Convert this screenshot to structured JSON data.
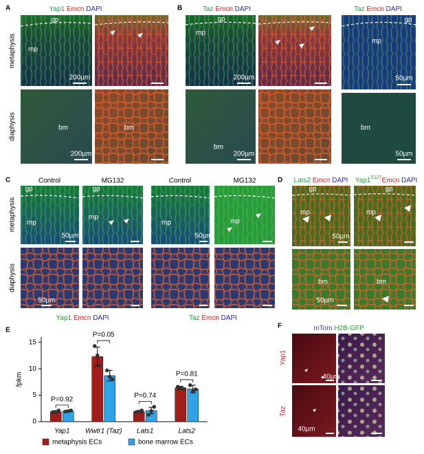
{
  "panel_a": {
    "letter": "A",
    "stain": [
      "Yap1",
      "Emcn",
      "DAPI"
    ],
    "rows": [
      "metaphysis",
      "diaphysis"
    ],
    "gp": "gp",
    "mp": "mp",
    "bm": [
      "bm",
      "bm"
    ],
    "scale": [
      "200µm",
      "200µm"
    ]
  },
  "panel_b": {
    "letter": "B",
    "stain": [
      "Taz",
      "Emcn",
      "DAPI"
    ],
    "stain_inset": [
      "Taz",
      "Emcn",
      "DAPI"
    ],
    "gp": [
      "gp",
      "gp"
    ],
    "mp": [
      "mp",
      "mp"
    ],
    "bm": [
      "bm",
      "bm"
    ],
    "scale": [
      "200µm",
      "200µm",
      "50µm",
      "50µm"
    ]
  },
  "panel_c": {
    "letter": "C",
    "conditions": [
      "Control",
      "MG132",
      "Control",
      "MG132"
    ],
    "rows": [
      "metaphysis",
      "diaphysis"
    ],
    "gp": [
      "gp",
      "gp"
    ],
    "mp": [
      "mp",
      "mp",
      "mp",
      "mp"
    ],
    "scale": [
      "50µm",
      "50µm",
      "50µm"
    ],
    "stain_left": [
      "Yap1",
      "Emcn",
      "DAPI"
    ],
    "stain_right": [
      "Taz",
      "Emcn",
      "DAPI"
    ]
  },
  "panel_d": {
    "letter": "D",
    "stain_left": [
      "Lats2",
      "Emcn",
      "DAPI"
    ],
    "stain_right": {
      "base": "Yap1",
      "sup": "S127",
      "rest": [
        "Emcn",
        "DAPI"
      ]
    },
    "gp": [
      "gp",
      "gp"
    ],
    "mp": [
      "mp",
      "mp"
    ],
    "bm": [
      "bm",
      "bm"
    ],
    "scale": [
      "50µm",
      "50µm"
    ]
  },
  "panel_e": {
    "letter": "E"
  },
  "panel_f": {
    "letter": "F",
    "stain": [
      "mTom",
      "H2B-GFP"
    ],
    "rows": [
      "Yap1",
      "Taz"
    ],
    "scale": [
      "40µm",
      "40µm"
    ]
  },
  "chart_data": {
    "type": "bar",
    "y_label": "fpkm",
    "categories": [
      "Yap1",
      "Wwtr1 (Taz)",
      "Lats1",
      "Lats2"
    ],
    "series": [
      {
        "name": "metaphysis ECs",
        "color": "#a11d1a",
        "values": [
          1.9,
          12.3,
          1.9,
          6.4
        ],
        "errors": [
          0.2,
          1.8,
          0.2,
          0.3
        ],
        "points": [
          [
            1.8,
            1.8,
            2.1
          ],
          [
            14.3,
            12.5,
            10.6
          ],
          [
            1.8,
            1.9,
            2.1
          ],
          [
            6.6,
            6.4,
            6.2
          ]
        ]
      },
      {
        "name": "bone marrow ECs",
        "color": "#2ea3e8",
        "values": [
          2.0,
          8.7,
          2.1,
          6.2
        ],
        "errors": [
          0.1,
          1.0,
          0.6,
          0.7
        ],
        "points": [
          [
            1.9,
            2.0,
            2.1
          ],
          [
            9.7,
            8.5,
            8.0
          ],
          [
            1.3,
            2.0,
            2.8
          ],
          [
            6.9,
            5.7,
            6.1
          ]
        ]
      }
    ],
    "ylim": [
      0,
      16
    ],
    "yticks": [
      0,
      5,
      10,
      15
    ],
    "annotations": [
      "P=0.92",
      "P=0.05",
      "P=0.74",
      "P=0.81"
    ]
  }
}
